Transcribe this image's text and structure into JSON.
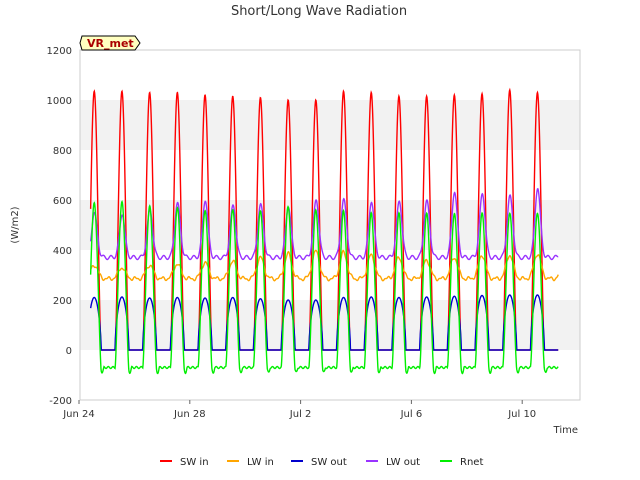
{
  "chart_data": {
    "type": "line",
    "title": "Short/Long Wave Radiation",
    "xlabel": "Time",
    "ylabel": "(W/m2)",
    "site_badge": "VR_met",
    "x_ticks": [
      "Jun 24",
      "Jun 28",
      "Jul 2",
      "Jul 6",
      "Jul 10"
    ],
    "x_range_days": [
      0,
      18
    ],
    "ylim": [
      -200,
      1200
    ],
    "y_ticks": [
      -200,
      0,
      200,
      400,
      600,
      800,
      1000,
      1200
    ],
    "grid": "horizontal bands",
    "legend_position": "bottom",
    "days": [
      "Jun 24",
      "Jun 25",
      "Jun 26",
      "Jun 27",
      "Jun 28",
      "Jun 29",
      "Jun 30",
      "Jul 1",
      "Jul 2",
      "Jul 3",
      "Jul 4",
      "Jul 5",
      "Jul 6",
      "Jul 7",
      "Jul 8",
      "Jul 9",
      "Jul 10",
      "Jul 11"
    ],
    "series": [
      {
        "name": "SW in",
        "color": "#ff0000",
        "night_value": 0,
        "daily_peak": [
          1035,
          1035,
          1030,
          1030,
          1020,
          1015,
          1010,
          1000,
          1000,
          1035,
          1030,
          1015,
          1015,
          1020,
          1025,
          1040,
          1030
        ]
      },
      {
        "name": "LW in",
        "color": "#ffa500",
        "night_value": 300,
        "daily_peak": [
          340,
          330,
          340,
          345,
          350,
          355,
          370,
          385,
          395,
          390,
          380,
          370,
          360,
          370,
          380,
          380,
          385
        ]
      },
      {
        "name": "SW out",
        "color": "#0000cc",
        "night_value": 0,
        "daily_peak": [
          210,
          212,
          208,
          210,
          208,
          210,
          205,
          200,
          200,
          210,
          212,
          210,
          212,
          215,
          218,
          220,
          220
        ]
      },
      {
        "name": "LW out",
        "color": "#9933ff",
        "night_value": 370,
        "daily_peak": [
          550,
          540,
          560,
          590,
          595,
          580,
          585,
          570,
          600,
          605,
          590,
          595,
          600,
          630,
          625,
          620,
          645
        ]
      },
      {
        "name": "Rnet",
        "color": "#00ee00",
        "night_value": -70,
        "daily_peak": [
          585,
          590,
          575,
          570,
          560,
          565,
          560,
          575,
          560,
          555,
          545,
          545,
          545,
          545,
          550,
          550,
          550
        ]
      }
    ]
  }
}
